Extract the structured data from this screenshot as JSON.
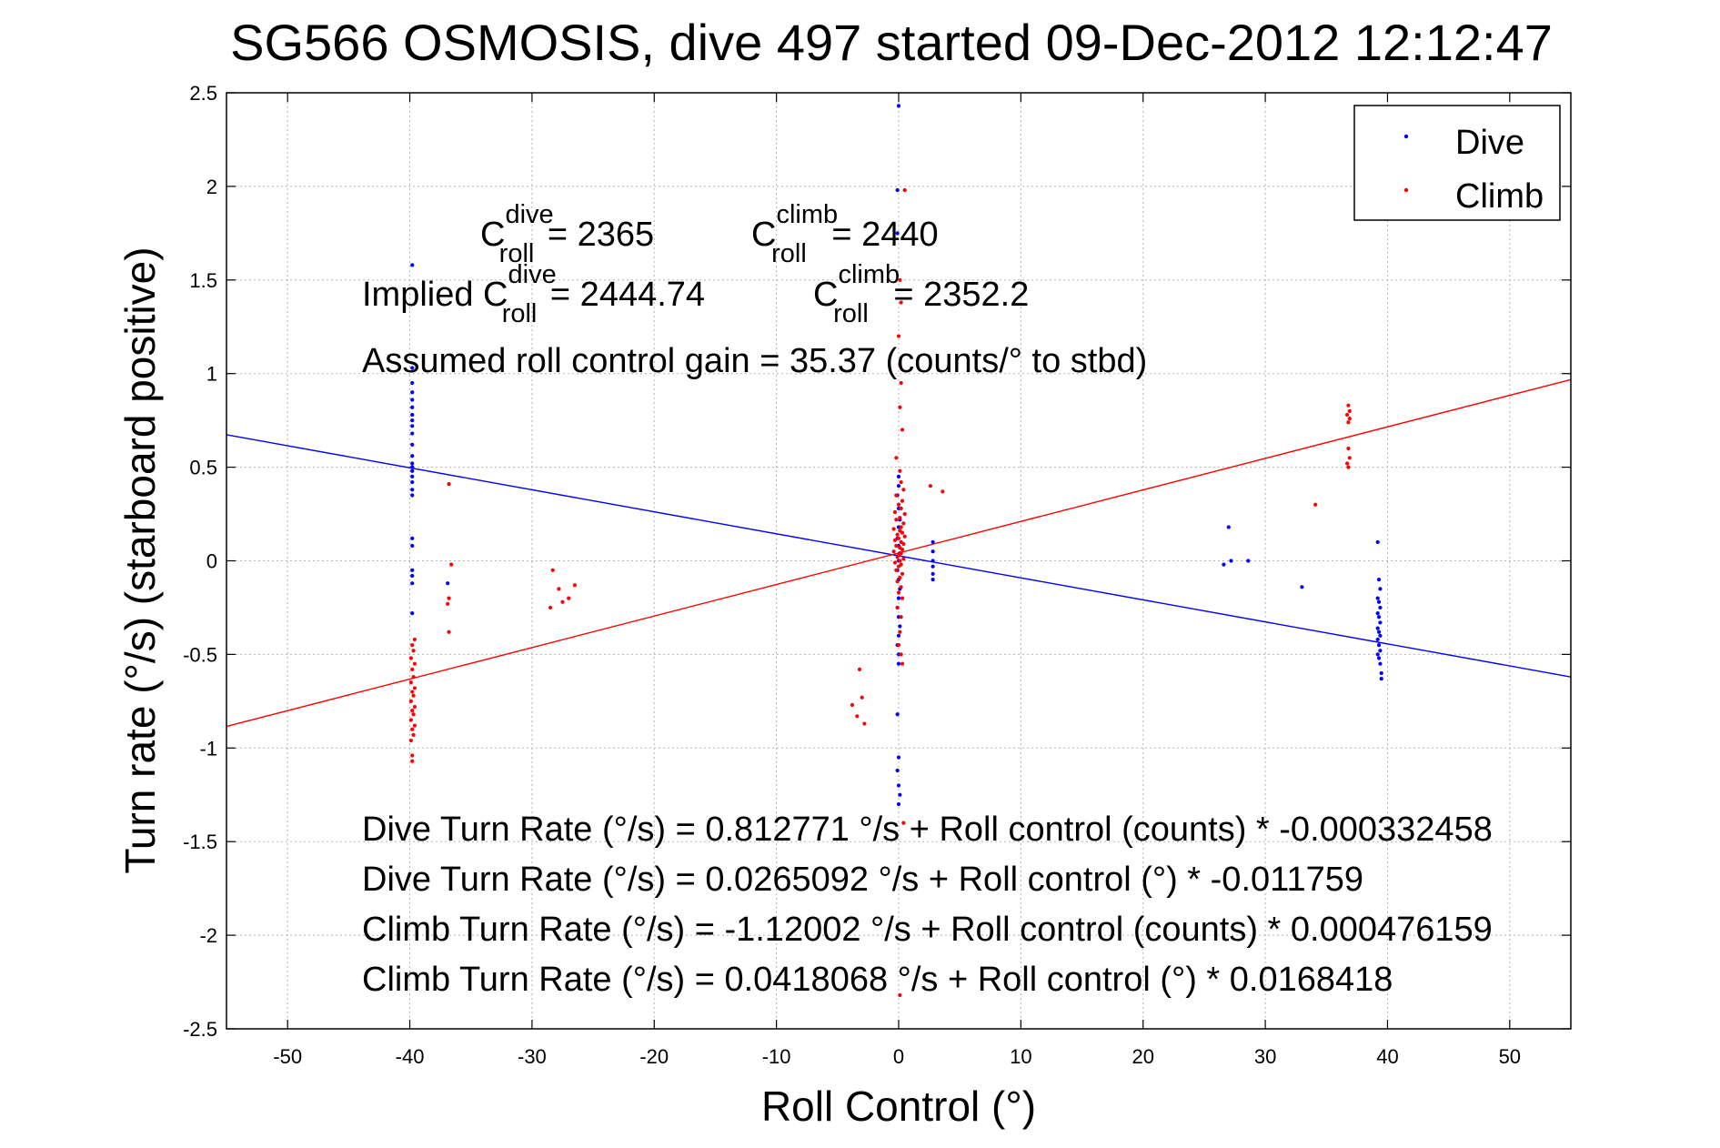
{
  "chart_data": {
    "type": "scatter",
    "title": "SG566 OSMOSIS, dive 497 started 09-Dec-2012 12:12:47",
    "xlabel": "Roll Control (°)",
    "ylabel": "Turn rate (°/s)  (starboard positive)",
    "xlim": [
      -55,
      55
    ],
    "ylim": [
      -2.5,
      2.5
    ],
    "xticks": [
      -50,
      -40,
      -30,
      -20,
      -10,
      0,
      10,
      20,
      30,
      40,
      50
    ],
    "yticks": [
      -2.5,
      -2,
      -1.5,
      -1,
      -0.5,
      0,
      0.5,
      1,
      1.5,
      2,
      2.5
    ],
    "xtick_labels": [
      "-50",
      "-40",
      "-30",
      "-20",
      "-10",
      "0",
      "10",
      "20",
      "30",
      "40",
      "50"
    ],
    "ytick_labels": [
      "-2.5",
      "-2",
      "-1.5",
      "-1",
      "-0.5",
      "0",
      "0.5",
      "1",
      "1.5",
      "2",
      "2.5"
    ],
    "grid": true,
    "legend_position": "top-right",
    "colors": {
      "Dive": "#0000ff",
      "Climb": "#ff0000"
    },
    "series": [
      {
        "name": "Dive",
        "color": "#0000ff",
        "points": [
          [
            -39.8,
            1.58
          ],
          [
            -39.8,
            1.03
          ],
          [
            -39.8,
            0.95
          ],
          [
            -39.8,
            0.9
          ],
          [
            -39.8,
            0.86
          ],
          [
            -39.8,
            0.82
          ],
          [
            -39.8,
            0.78
          ],
          [
            -39.8,
            0.75
          ],
          [
            -39.8,
            0.72
          ],
          [
            -39.8,
            0.68
          ],
          [
            -39.8,
            0.62
          ],
          [
            -39.8,
            0.56
          ],
          [
            -39.8,
            0.52
          ],
          [
            -39.8,
            0.5
          ],
          [
            -39.8,
            0.48
          ],
          [
            -39.8,
            0.45
          ],
          [
            -39.8,
            0.42
          ],
          [
            -39.8,
            0.38
          ],
          [
            -39.8,
            0.35
          ],
          [
            -39.8,
            0.12
          ],
          [
            -39.8,
            0.08
          ],
          [
            -39.8,
            -0.05
          ],
          [
            -39.8,
            -0.08
          ],
          [
            -39.8,
            -0.12
          ],
          [
            -39.8,
            -0.28
          ],
          [
            -36.9,
            -0.12
          ],
          [
            0.0,
            2.43
          ],
          [
            -0.1,
            1.98
          ],
          [
            -0.1,
            1.75
          ],
          [
            0.0,
            0.45
          ],
          [
            0.0,
            0.4
          ],
          [
            -0.1,
            0.35
          ],
          [
            0.0,
            0.28
          ],
          [
            0.1,
            0.22
          ],
          [
            0.0,
            0.18
          ],
          [
            -0.1,
            0.12
          ],
          [
            0.0,
            0.08
          ],
          [
            0.1,
            0.04
          ],
          [
            0.0,
            0.0
          ],
          [
            -0.1,
            -0.05
          ],
          [
            0.0,
            -0.1
          ],
          [
            0.1,
            -0.15
          ],
          [
            0.0,
            -0.2
          ],
          [
            -0.1,
            -0.25
          ],
          [
            0.0,
            -0.3
          ],
          [
            0.1,
            -0.35
          ],
          [
            0.0,
            -0.4
          ],
          [
            -0.1,
            -0.45
          ],
          [
            0.0,
            -0.5
          ],
          [
            0.0,
            -0.55
          ],
          [
            -0.1,
            -0.82
          ],
          [
            0.0,
            -1.05
          ],
          [
            -0.1,
            -1.12
          ],
          [
            0.0,
            -1.2
          ],
          [
            0.1,
            -1.25
          ],
          [
            0.0,
            -1.3
          ],
          [
            2.8,
            0.1
          ],
          [
            2.8,
            0.05
          ],
          [
            2.8,
            0.0
          ],
          [
            2.8,
            -0.03
          ],
          [
            2.8,
            -0.07
          ],
          [
            2.8,
            -0.1
          ],
          [
            27.0,
            0.18
          ],
          [
            26.6,
            -0.02
          ],
          [
            27.2,
            0.0
          ],
          [
            28.6,
            0.0
          ],
          [
            33.0,
            -0.14
          ],
          [
            39.2,
            0.1
          ],
          [
            39.3,
            -0.1
          ],
          [
            39.4,
            -0.15
          ],
          [
            39.2,
            -0.2
          ],
          [
            39.3,
            -0.22
          ],
          [
            39.4,
            -0.25
          ],
          [
            39.2,
            -0.28
          ],
          [
            39.3,
            -0.3
          ],
          [
            39.4,
            -0.33
          ],
          [
            39.2,
            -0.36
          ],
          [
            39.3,
            -0.38
          ],
          [
            39.4,
            -0.4
          ],
          [
            39.2,
            -0.42
          ],
          [
            39.3,
            -0.45
          ],
          [
            39.4,
            -0.48
          ],
          [
            39.2,
            -0.5
          ],
          [
            39.3,
            -0.52
          ],
          [
            39.4,
            -0.55
          ],
          [
            39.5,
            -0.6
          ],
          [
            39.5,
            -0.63
          ]
        ],
        "fit": {
          "intercept": 0.0265092,
          "slope": -0.011759
        }
      },
      {
        "name": "Climb",
        "color": "#ff0000",
        "points": [
          [
            -39.6,
            -0.42
          ],
          [
            -39.8,
            -0.45
          ],
          [
            -39.7,
            -0.48
          ],
          [
            -39.9,
            -0.52
          ],
          [
            -39.6,
            -0.55
          ],
          [
            -39.8,
            -0.58
          ],
          [
            -39.7,
            -0.62
          ],
          [
            -39.9,
            -0.65
          ],
          [
            -39.6,
            -0.68
          ],
          [
            -39.8,
            -0.7
          ],
          [
            -39.7,
            -0.72
          ],
          [
            -39.9,
            -0.75
          ],
          [
            -39.6,
            -0.78
          ],
          [
            -39.8,
            -0.8
          ],
          [
            -39.7,
            -0.82
          ],
          [
            -39.9,
            -0.85
          ],
          [
            -39.6,
            -0.88
          ],
          [
            -39.8,
            -0.9
          ],
          [
            -39.7,
            -0.93
          ],
          [
            -39.9,
            -0.96
          ],
          [
            -39.8,
            -1.04
          ],
          [
            -39.8,
            -1.07
          ],
          [
            -36.8,
            0.41
          ],
          [
            -36.6,
            -0.02
          ],
          [
            -36.8,
            -0.2
          ],
          [
            -36.9,
            -0.23
          ],
          [
            -36.8,
            -0.38
          ],
          [
            -28.3,
            -0.05
          ],
          [
            -28.5,
            -0.25
          ],
          [
            -27.5,
            -0.22
          ],
          [
            -27.0,
            -0.2
          ],
          [
            -26.5,
            -0.13
          ],
          [
            -27.8,
            -0.15
          ],
          [
            -3.2,
            -0.58
          ],
          [
            -3.8,
            -0.77
          ],
          [
            -3.0,
            -0.73
          ],
          [
            -3.4,
            -0.83
          ],
          [
            -2.8,
            -0.87
          ],
          [
            0.5,
            1.98
          ],
          [
            0.1,
            1.5
          ],
          [
            0.2,
            1.38
          ],
          [
            0.0,
            1.2
          ],
          [
            0.1,
            1.05
          ],
          [
            0.2,
            0.95
          ],
          [
            0.1,
            0.82
          ],
          [
            0.3,
            0.7
          ],
          [
            -0.2,
            0.55
          ],
          [
            0.1,
            0.48
          ],
          [
            0.2,
            0.42
          ],
          [
            0.4,
            0.38
          ],
          [
            -0.2,
            0.35
          ],
          [
            0.3,
            0.32
          ],
          [
            0.0,
            0.3
          ],
          [
            0.2,
            0.28
          ],
          [
            -0.3,
            0.26
          ],
          [
            0.5,
            0.25
          ],
          [
            0.1,
            0.23
          ],
          [
            -0.2,
            0.22
          ],
          [
            0.4,
            0.2
          ],
          [
            0.2,
            0.18
          ],
          [
            -0.4,
            0.17
          ],
          [
            0.1,
            0.16
          ],
          [
            0.3,
            0.15
          ],
          [
            -0.1,
            0.14
          ],
          [
            0.5,
            0.13
          ],
          [
            0.0,
            0.12
          ],
          [
            -0.3,
            0.11
          ],
          [
            0.2,
            0.1
          ],
          [
            0.4,
            0.09
          ],
          [
            -0.2,
            0.08
          ],
          [
            0.1,
            0.07
          ],
          [
            0.3,
            0.06
          ],
          [
            -0.4,
            0.05
          ],
          [
            0.2,
            0.04
          ],
          [
            0.0,
            0.03
          ],
          [
            -0.1,
            0.02
          ],
          [
            0.4,
            0.01
          ],
          [
            0.1,
            0.0
          ],
          [
            -0.3,
            -0.01
          ],
          [
            0.2,
            -0.02
          ],
          [
            0.0,
            -0.03
          ],
          [
            -0.2,
            -0.05
          ],
          [
            0.3,
            -0.07
          ],
          [
            0.1,
            -0.09
          ],
          [
            -0.1,
            -0.11
          ],
          [
            0.2,
            -0.14
          ],
          [
            0.0,
            -0.17
          ],
          [
            0.3,
            -0.2
          ],
          [
            -0.1,
            -0.25
          ],
          [
            0.2,
            -0.3
          ],
          [
            0.1,
            -0.38
          ],
          [
            0.0,
            -0.45
          ],
          [
            0.2,
            -0.5
          ],
          [
            0.3,
            -0.55
          ],
          [
            0.4,
            -1.4
          ],
          [
            0.1,
            -2.32
          ],
          [
            2.6,
            0.4
          ],
          [
            3.6,
            0.37
          ],
          [
            34.1,
            0.3
          ],
          [
            36.8,
            0.83
          ],
          [
            36.9,
            0.8
          ],
          [
            36.7,
            0.78
          ],
          [
            36.9,
            0.76
          ],
          [
            36.8,
            0.74
          ],
          [
            36.8,
            0.6
          ],
          [
            36.9,
            0.55
          ],
          [
            36.7,
            0.52
          ],
          [
            36.8,
            0.5
          ]
        ],
        "fit": {
          "intercept": 0.0418068,
          "slope": 0.0168418
        }
      }
    ]
  },
  "annotations": {
    "c_dive_prefix": "C",
    "c_dive_sup": "dive",
    "c_dive_sub": "roll",
    "c_dive_value": " = 2365",
    "c_climb_prefix": "C",
    "c_climb_sup": "climb",
    "c_climb_sub": "roll",
    "c_climb_value": " = 2440",
    "implied_prefix": "Implied C",
    "implied_dive_sup": "dive",
    "implied_dive_sub": "roll",
    "implied_dive_value": " = 2444.74",
    "implied_climb_prefix": "C",
    "implied_climb_sup": "climb",
    "implied_climb_sub": "roll",
    "implied_climb_value": " = 2352.2",
    "gain": "Assumed roll control gain = 35.37 (counts/° to stbd)",
    "eq1": "Dive Turn Rate (°/s) = 0.812771 °/s + Roll control (counts) * -0.000332458",
    "eq2": "Dive Turn Rate (°/s) = 0.0265092 °/s + Roll control (°) * -0.011759",
    "eq3": "Climb Turn Rate (°/s) = -1.12002 °/s + Roll control (counts) * 0.000476159",
    "eq4": "Climb Turn Rate (°/s) = 0.0418068 °/s + Roll control (°) * 0.0168418"
  },
  "legend": {
    "dive_label": "Dive",
    "climb_label": "Climb"
  }
}
